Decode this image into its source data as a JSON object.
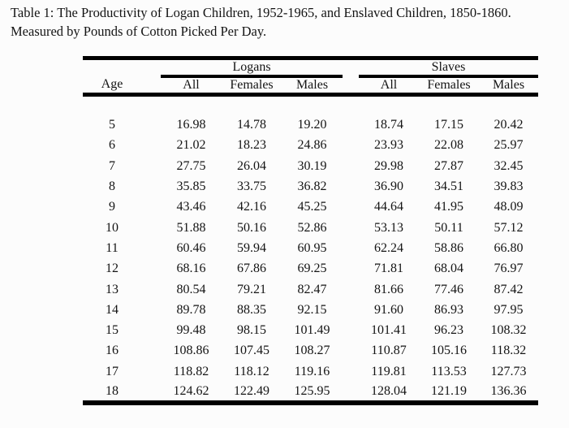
{
  "caption": {
    "line1": "Table 1: The Productivity of Logan Children, 1952-1965, and Enslaved Children, 1850-1860.",
    "line2": "Measured by Pounds of Cotton Picked Per Day."
  },
  "table": {
    "group_headers": [
      {
        "label": "Logans",
        "span": 3
      },
      {
        "label": "Slaves",
        "span": 3
      }
    ],
    "column_headers": {
      "age": "Age",
      "logans": [
        "All",
        "Females",
        "Males"
      ],
      "slaves": [
        "All",
        "Females",
        "Males"
      ]
    },
    "rows": [
      {
        "age": "5",
        "logans": [
          "16.98",
          "14.78",
          "19.20"
        ],
        "slaves": [
          "18.74",
          "17.15",
          "20.42"
        ]
      },
      {
        "age": "6",
        "logans": [
          "21.02",
          "18.23",
          "24.86"
        ],
        "slaves": [
          "23.93",
          "22.08",
          "25.97"
        ]
      },
      {
        "age": "7",
        "logans": [
          "27.75",
          "26.04",
          "30.19"
        ],
        "slaves": [
          "29.98",
          "27.87",
          "32.45"
        ]
      },
      {
        "age": "8",
        "logans": [
          "35.85",
          "33.75",
          "36.82"
        ],
        "slaves": [
          "36.90",
          "34.51",
          "39.83"
        ]
      },
      {
        "age": "9",
        "logans": [
          "43.46",
          "42.16",
          "45.25"
        ],
        "slaves": [
          "44.64",
          "41.95",
          "48.09"
        ]
      },
      {
        "age": "10",
        "logans": [
          "51.88",
          "50.16",
          "52.86"
        ],
        "slaves": [
          "53.13",
          "50.11",
          "57.12"
        ]
      },
      {
        "age": "11",
        "logans": [
          "60.46",
          "59.94",
          "60.95"
        ],
        "slaves": [
          "62.24",
          "58.86",
          "66.80"
        ]
      },
      {
        "age": "12",
        "logans": [
          "68.16",
          "67.86",
          "69.25"
        ],
        "slaves": [
          "71.81",
          "68.04",
          "76.97"
        ]
      },
      {
        "age": "13",
        "logans": [
          "80.54",
          "79.21",
          "82.47"
        ],
        "slaves": [
          "81.66",
          "77.46",
          "87.42"
        ]
      },
      {
        "age": "14",
        "logans": [
          "89.78",
          "88.35",
          "92.15"
        ],
        "slaves": [
          "91.60",
          "86.93",
          "97.95"
        ]
      },
      {
        "age": "15",
        "logans": [
          "99.48",
          "98.15",
          "101.49"
        ],
        "slaves": [
          "101.41",
          "96.23",
          "108.32"
        ]
      },
      {
        "age": "16",
        "logans": [
          "108.86",
          "107.45",
          "108.27"
        ],
        "slaves": [
          "110.87",
          "105.16",
          "118.32"
        ]
      },
      {
        "age": "17",
        "logans": [
          "118.82",
          "118.12",
          "119.16"
        ],
        "slaves": [
          "119.81",
          "113.53",
          "127.73"
        ]
      },
      {
        "age": "18",
        "logans": [
          "124.62",
          "122.49",
          "125.95"
        ],
        "slaves": [
          "128.04",
          "121.19",
          "136.36"
        ]
      }
    ],
    "colors": {
      "background": "#fcfcfc",
      "text": "#141414",
      "rule": "#000000"
    }
  }
}
